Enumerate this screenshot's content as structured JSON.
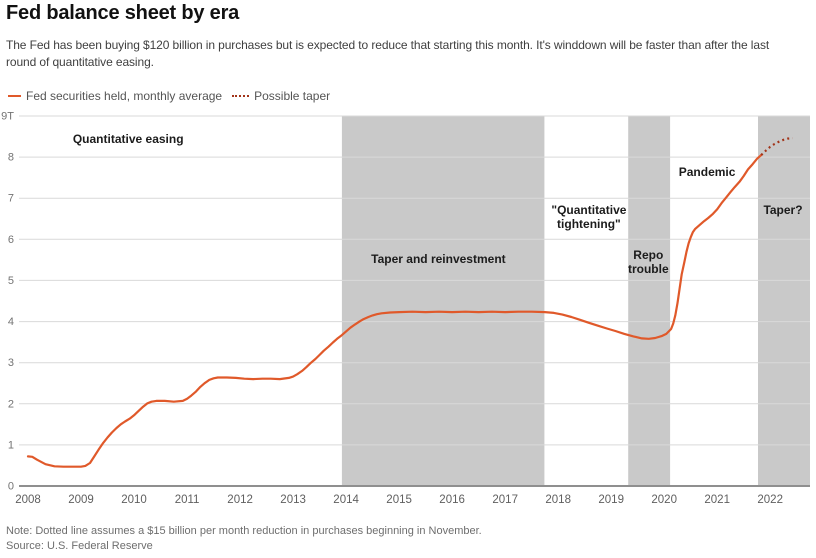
{
  "page": {
    "title": "Fed balance sheet by era",
    "subtitle": "The Fed has been buying $120 billion in purchases but is expected to reduce that starting this month. It's winddown will be faster than after the last\nround of quantitative easing."
  },
  "legend": {
    "items": [
      {
        "label": "Fed securities held, monthly average",
        "style": "solid",
        "color": "#e0592a"
      },
      {
        "label": "Possible taper",
        "style": "dotted",
        "color": "#a23419"
      }
    ]
  },
  "footer": {
    "note": "Note: Dotted line assumes a $15 billion per month reduction in purchases beginning in November.",
    "source": "Source: U.S. Federal Reserve"
  },
  "chart_data": {
    "type": "line",
    "title": "Fed balance sheet by era",
    "unit": "trillions of U.S. dollars",
    "xlim": [
      2007.83,
      2022.75
    ],
    "ylim": [
      0,
      9
    ],
    "grid": true,
    "legend_position": "top-left",
    "yticks": [
      {
        "value": 0,
        "label": "0"
      },
      {
        "value": 1,
        "label": "1"
      },
      {
        "value": 2,
        "label": "2"
      },
      {
        "value": 3,
        "label": "3"
      },
      {
        "value": 4,
        "label": "4"
      },
      {
        "value": 5,
        "label": "5"
      },
      {
        "value": 6,
        "label": "6"
      },
      {
        "value": 7,
        "label": "7"
      },
      {
        "value": 8,
        "label": "8"
      },
      {
        "value": 9,
        "label": "9T"
      }
    ],
    "xticks": [
      2008,
      2009,
      2010,
      2011,
      2012,
      2013,
      2014,
      2015,
      2016,
      2017,
      2018,
      2019,
      2020,
      2021,
      2022
    ],
    "colors": {
      "band": "#c9c9c9",
      "gridline": "#d9d9d9",
      "axis": "#8f8f8f",
      "tick_text": "#737373",
      "era_label": "#1c1c1c",
      "solid_line": "#e0592a",
      "dotted_line": "#a23419"
    },
    "eras": [
      {
        "label": "Quantitative easing",
        "band": null,
        "label_pos": [
          2009.89,
          8.44
        ]
      },
      {
        "label": "Taper and reinvestment",
        "band": [
          2013.92,
          2017.74
        ],
        "label_pos": [
          2015.74,
          5.52
        ]
      },
      {
        "label": "\"Quantitative\ntightening\"",
        "band": null,
        "label_pos": [
          2018.58,
          6.54
        ]
      },
      {
        "label": "Repo\ntrouble",
        "band": [
          2019.32,
          2020.11
        ],
        "label_pos": [
          2019.7,
          5.45
        ]
      },
      {
        "label": "Pandemic",
        "band": null,
        "label_pos": [
          2020.81,
          7.64
        ]
      },
      {
        "label": "Taper?",
        "band": [
          2021.77,
          2022.75
        ],
        "label_pos": [
          2022.24,
          6.71
        ]
      }
    ],
    "series": [
      {
        "name": "Fed securities held, monthly average",
        "style": "solid",
        "color": "#e0592a",
        "points": [
          [
            2008.0,
            0.72
          ],
          [
            2008.08,
            0.71
          ],
          [
            2008.17,
            0.64
          ],
          [
            2008.33,
            0.53
          ],
          [
            2008.5,
            0.48
          ],
          [
            2008.67,
            0.47
          ],
          [
            2008.83,
            0.47
          ],
          [
            2009.0,
            0.47
          ],
          [
            2009.08,
            0.49
          ],
          [
            2009.17,
            0.56
          ],
          [
            2009.25,
            0.72
          ],
          [
            2009.33,
            0.88
          ],
          [
            2009.42,
            1.05
          ],
          [
            2009.5,
            1.18
          ],
          [
            2009.58,
            1.3
          ],
          [
            2009.67,
            1.41
          ],
          [
            2009.75,
            1.5
          ],
          [
            2009.83,
            1.57
          ],
          [
            2009.92,
            1.64
          ],
          [
            2010.0,
            1.72
          ],
          [
            2010.08,
            1.82
          ],
          [
            2010.17,
            1.93
          ],
          [
            2010.25,
            2.01
          ],
          [
            2010.33,
            2.05
          ],
          [
            2010.42,
            2.07
          ],
          [
            2010.58,
            2.07
          ],
          [
            2010.75,
            2.05
          ],
          [
            2010.92,
            2.07
          ],
          [
            2011.0,
            2.12
          ],
          [
            2011.08,
            2.2
          ],
          [
            2011.17,
            2.3
          ],
          [
            2011.25,
            2.41
          ],
          [
            2011.33,
            2.5
          ],
          [
            2011.42,
            2.58
          ],
          [
            2011.5,
            2.62
          ],
          [
            2011.58,
            2.64
          ],
          [
            2011.75,
            2.64
          ],
          [
            2011.92,
            2.63
          ],
          [
            2012.08,
            2.61
          ],
          [
            2012.25,
            2.6
          ],
          [
            2012.42,
            2.61
          ],
          [
            2012.58,
            2.61
          ],
          [
            2012.75,
            2.6
          ],
          [
            2012.92,
            2.63
          ],
          [
            2013.0,
            2.66
          ],
          [
            2013.08,
            2.72
          ],
          [
            2013.17,
            2.8
          ],
          [
            2013.25,
            2.89
          ],
          [
            2013.33,
            2.99
          ],
          [
            2013.42,
            3.09
          ],
          [
            2013.5,
            3.19
          ],
          [
            2013.58,
            3.29
          ],
          [
            2013.67,
            3.39
          ],
          [
            2013.75,
            3.49
          ],
          [
            2013.83,
            3.58
          ],
          [
            2013.92,
            3.67
          ],
          [
            2014.0,
            3.76
          ],
          [
            2014.08,
            3.85
          ],
          [
            2014.17,
            3.93
          ],
          [
            2014.25,
            4.0
          ],
          [
            2014.33,
            4.06
          ],
          [
            2014.42,
            4.11
          ],
          [
            2014.5,
            4.15
          ],
          [
            2014.58,
            4.18
          ],
          [
            2014.67,
            4.2
          ],
          [
            2014.83,
            4.22
          ],
          [
            2015.0,
            4.23
          ],
          [
            2015.25,
            4.24
          ],
          [
            2015.5,
            4.23
          ],
          [
            2015.75,
            4.24
          ],
          [
            2016.0,
            4.23
          ],
          [
            2016.25,
            4.24
          ],
          [
            2016.5,
            4.23
          ],
          [
            2016.75,
            4.24
          ],
          [
            2017.0,
            4.23
          ],
          [
            2017.25,
            4.24
          ],
          [
            2017.5,
            4.24
          ],
          [
            2017.75,
            4.23
          ],
          [
            2017.92,
            4.21
          ],
          [
            2018.08,
            4.17
          ],
          [
            2018.25,
            4.11
          ],
          [
            2018.42,
            4.04
          ],
          [
            2018.58,
            3.97
          ],
          [
            2018.75,
            3.9
          ],
          [
            2018.92,
            3.83
          ],
          [
            2019.08,
            3.77
          ],
          [
            2019.25,
            3.7
          ],
          [
            2019.42,
            3.64
          ],
          [
            2019.58,
            3.59
          ],
          [
            2019.71,
            3.58
          ],
          [
            2019.83,
            3.6
          ],
          [
            2019.96,
            3.65
          ],
          [
            2020.04,
            3.7
          ],
          [
            2020.13,
            3.82
          ],
          [
            2020.17,
            3.95
          ],
          [
            2020.21,
            4.15
          ],
          [
            2020.25,
            4.45
          ],
          [
            2020.29,
            4.8
          ],
          [
            2020.33,
            5.15
          ],
          [
            2020.38,
            5.45
          ],
          [
            2020.42,
            5.7
          ],
          [
            2020.46,
            5.9
          ],
          [
            2020.5,
            6.05
          ],
          [
            2020.54,
            6.17
          ],
          [
            2020.58,
            6.25
          ],
          [
            2020.67,
            6.35
          ],
          [
            2020.75,
            6.44
          ],
          [
            2020.83,
            6.52
          ],
          [
            2020.92,
            6.62
          ],
          [
            2021.0,
            6.73
          ],
          [
            2021.08,
            6.88
          ],
          [
            2021.17,
            7.02
          ],
          [
            2021.25,
            7.15
          ],
          [
            2021.33,
            7.27
          ],
          [
            2021.42,
            7.4
          ],
          [
            2021.5,
            7.54
          ],
          [
            2021.58,
            7.7
          ],
          [
            2021.67,
            7.83
          ],
          [
            2021.75,
            7.96
          ],
          [
            2021.83,
            8.05
          ]
        ]
      },
      {
        "name": "Possible taper",
        "style": "dotted",
        "color": "#a23419",
        "points": [
          [
            2021.83,
            8.05
          ],
          [
            2021.92,
            8.16
          ],
          [
            2022.0,
            8.25
          ],
          [
            2022.08,
            8.32
          ],
          [
            2022.17,
            8.38
          ],
          [
            2022.25,
            8.42
          ],
          [
            2022.33,
            8.45
          ],
          [
            2022.42,
            8.46
          ]
        ]
      }
    ]
  }
}
